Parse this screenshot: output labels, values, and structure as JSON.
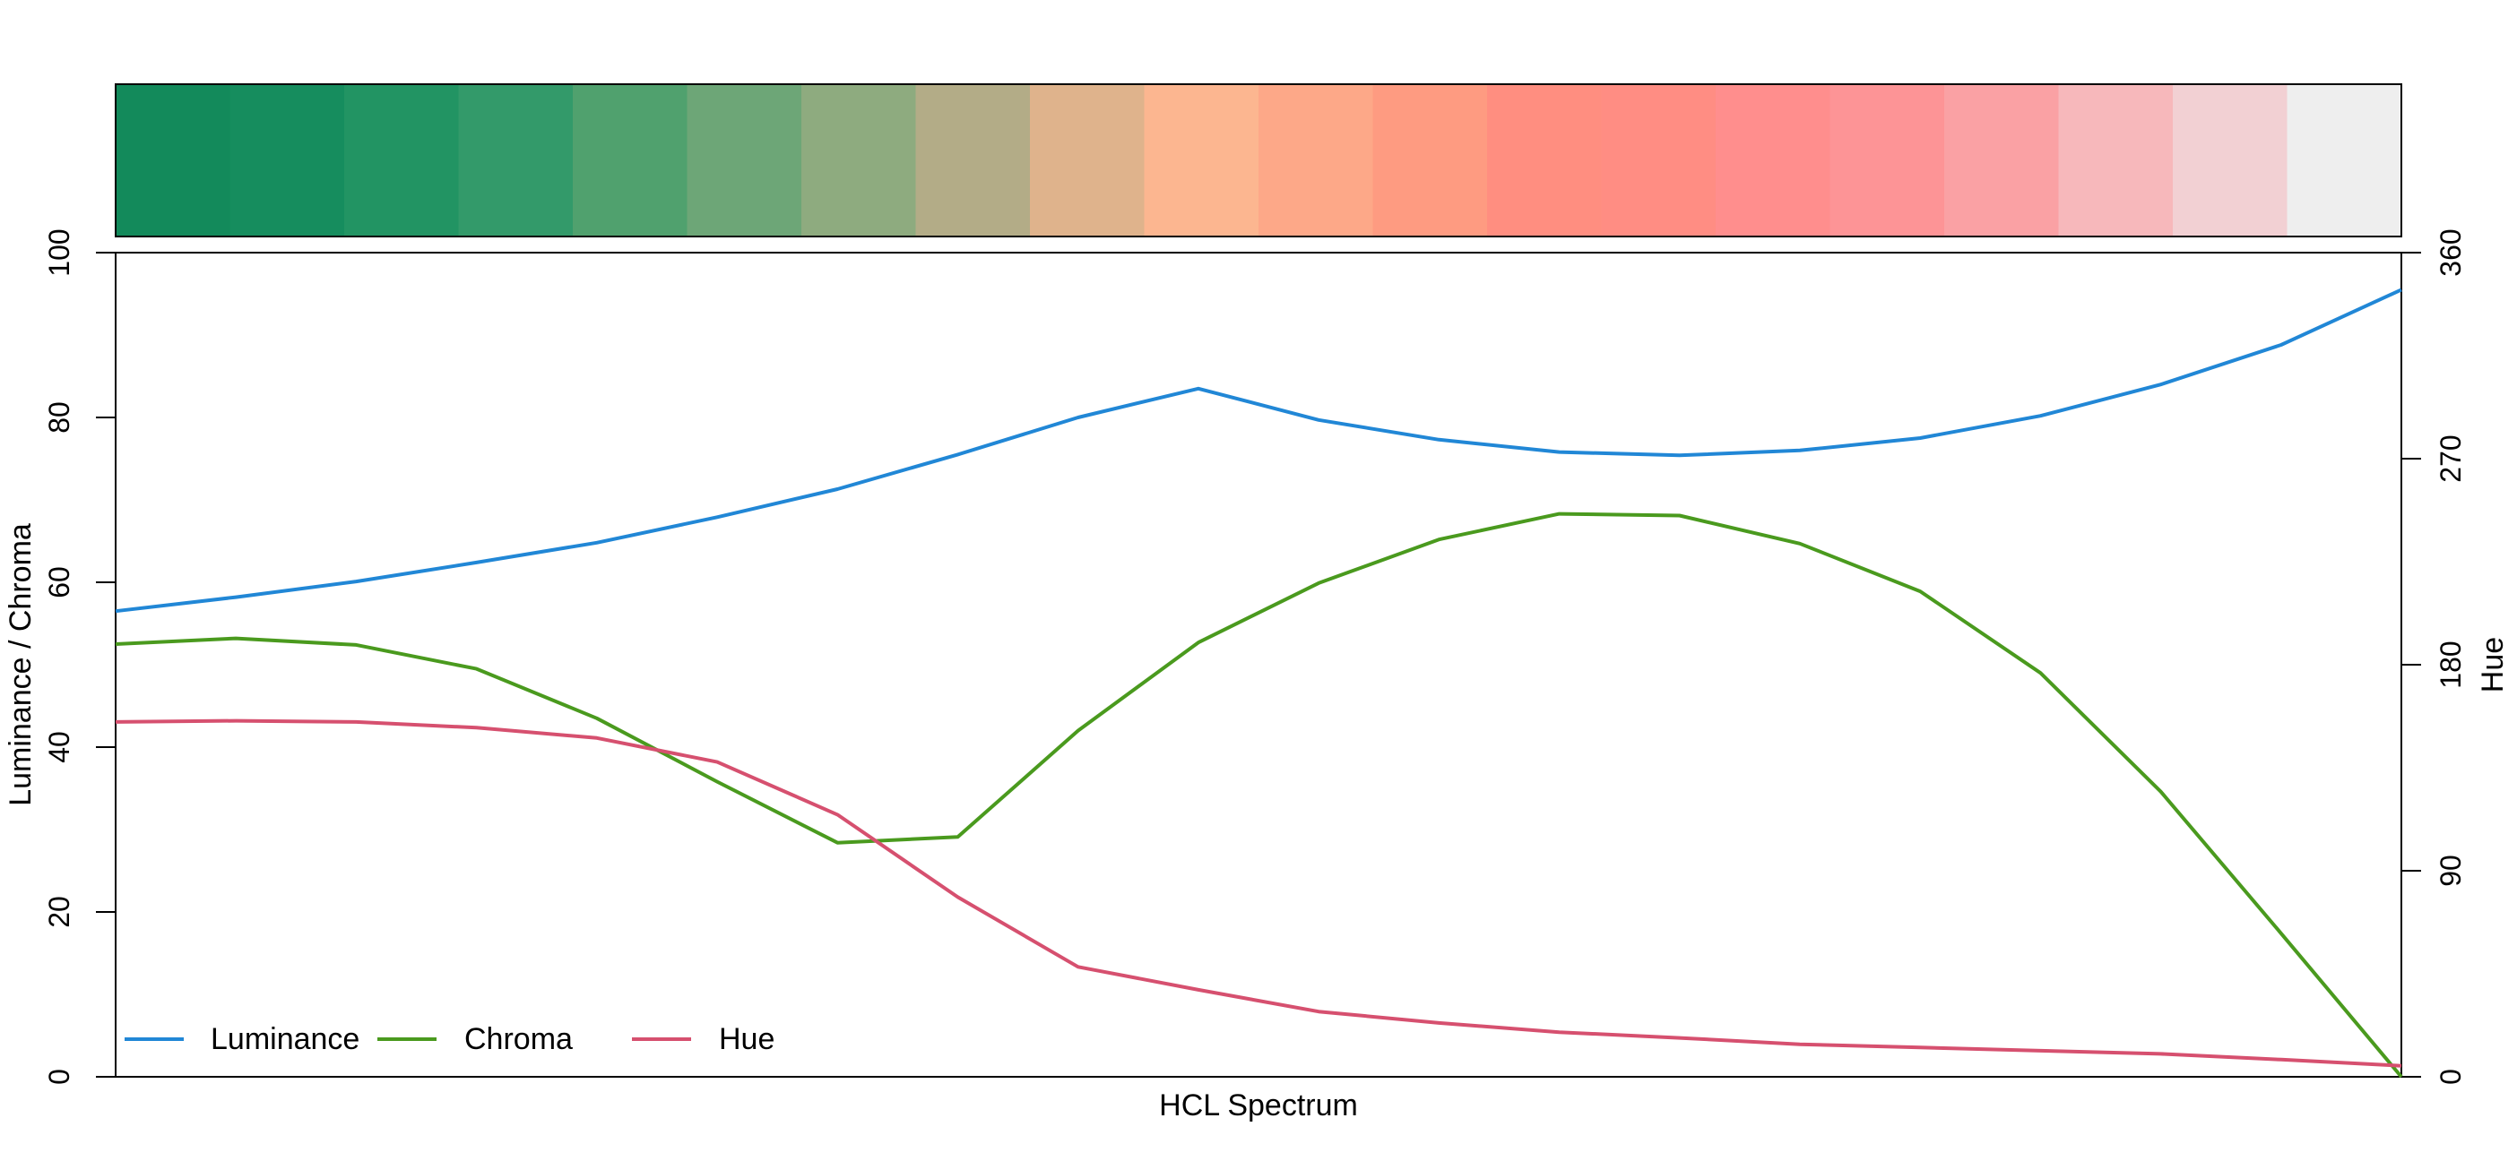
{
  "chart_data": {
    "type": "line",
    "title": "",
    "xlabel": "HCL Spectrum",
    "ylabel": "Luminance / Chroma",
    "y2label": "Hue",
    "ylim": [
      0,
      100
    ],
    "y2lim": [
      0,
      360
    ],
    "yticks": [
      "0",
      "20",
      "40",
      "60",
      "80",
      "100"
    ],
    "y2ticks": [
      "0",
      "90",
      "180",
      "270",
      "360"
    ],
    "swatches": [
      "#138A5B",
      "#168D5E",
      "#229463",
      "#339A6A",
      "#50A16E",
      "#6DA677",
      "#8EAB7F",
      "#B3AC87",
      "#DFB38C",
      "#FCB690",
      "#FDA888",
      "#FE9B81",
      "#FF8E80",
      "#FF8D83",
      "#FF8E8D",
      "#FD9496",
      "#FAA1A4",
      "#F7B8BB",
      "#F2D0D3",
      "#EEEEEE"
    ],
    "series": [
      {
        "name": "Luminance",
        "axis": "left",
        "color": "#2187D6",
        "values": [
          56.5,
          58.2,
          60.1,
          62.4,
          64.8,
          67.9,
          71.3,
          75.5,
          80.0,
          83.5,
          79.7,
          77.3,
          75.8,
          75.4,
          76.0,
          77.5,
          80.2,
          84.0,
          88.8,
          95.5
        ]
      },
      {
        "name": "Chroma",
        "axis": "left",
        "color": "#4A9A1E",
        "values": [
          52.5,
          53.2,
          52.4,
          49.5,
          43.5,
          35.8,
          28.4,
          29.1,
          42.0,
          52.7,
          59.9,
          65.2,
          68.3,
          68.1,
          64.7,
          58.9,
          49.0,
          34.6,
          17.4,
          0.0
        ]
      },
      {
        "name": "Hue",
        "axis": "right",
        "color": "#D6506F",
        "values": [
          155.0,
          155.5,
          155.0,
          152.5,
          148.0,
          137.5,
          114.5,
          78.5,
          48.0,
          38.0,
          28.5,
          23.5,
          19.5,
          17.0,
          14.2,
          12.8,
          11.4,
          10.0,
          7.5,
          4.8
        ]
      }
    ],
    "legend": {
      "position": "bottom-left",
      "items": [
        "Luminance",
        "Chroma",
        "Hue"
      ]
    },
    "grid": false
  }
}
